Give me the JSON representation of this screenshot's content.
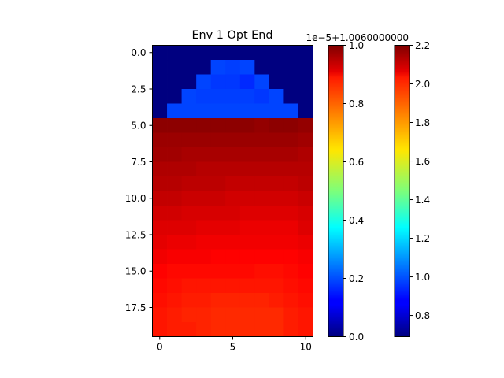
{
  "chart_data": [
    {
      "type": "heatmap",
      "title": "Env 1 Opt End",
      "colormap": "jet",
      "x": [
        0,
        1,
        2,
        3,
        4,
        5,
        6,
        7,
        8,
        9,
        10
      ],
      "y": [
        0,
        1,
        2,
        3,
        4,
        5,
        6,
        7,
        8,
        9,
        10,
        11,
        12,
        13,
        14,
        15,
        16,
        17,
        18,
        19
      ],
      "x_ticks": [
        "0",
        "5",
        "10"
      ],
      "y_ticks": [
        "0.0",
        "2.5",
        "5.0",
        "7.5",
        "10.0",
        "12.5",
        "15.0",
        "17.5"
      ],
      "xlim": [
        -0.5,
        10.5
      ],
      "ylim": [
        19.5,
        -0.5
      ],
      "values": [
        [
          0.07,
          0.07,
          0.07,
          0.07,
          0.12,
          0.22,
          0.08,
          0.07,
          0.07,
          0.06,
          0.07
        ],
        [
          0.06,
          0.06,
          0.06,
          0.07,
          0.98,
          0.97,
          0.98,
          0.07,
          0.06,
          0.05,
          0.06
        ],
        [
          0.06,
          0.06,
          0.07,
          0.98,
          0.96,
          0.96,
          0.94,
          0.98,
          0.06,
          0.06,
          0.06
        ],
        [
          0.06,
          0.12,
          0.98,
          0.97,
          0.97,
          0.97,
          0.97,
          0.96,
          0.98,
          0.06,
          0.06
        ],
        [
          0.14,
          0.98,
          0.98,
          0.98,
          0.98,
          0.98,
          0.98,
          0.98,
          0.98,
          0.98,
          0.08
        ],
        [
          2.18,
          2.18,
          2.18,
          2.18,
          2.18,
          2.18,
          2.18,
          2.17,
          2.18,
          2.18,
          2.17
        ],
        [
          2.16,
          2.16,
          2.16,
          2.16,
          2.16,
          2.16,
          2.16,
          2.16,
          2.16,
          2.16,
          2.15
        ],
        [
          2.15,
          2.15,
          2.14,
          2.14,
          2.14,
          2.14,
          2.14,
          2.14,
          2.14,
          2.14,
          2.13
        ],
        [
          2.13,
          2.13,
          2.13,
          2.12,
          2.12,
          2.12,
          2.12,
          2.12,
          2.12,
          2.12,
          2.12
        ],
        [
          2.12,
          2.12,
          2.11,
          2.11,
          2.11,
          2.1,
          2.1,
          2.1,
          2.1,
          2.1,
          2.11
        ],
        [
          2.1,
          2.1,
          2.09,
          2.09,
          2.09,
          2.08,
          2.08,
          2.08,
          2.08,
          2.08,
          2.09
        ],
        [
          2.08,
          2.08,
          2.07,
          2.07,
          2.07,
          2.07,
          2.06,
          2.06,
          2.06,
          2.06,
          2.07
        ],
        [
          2.06,
          2.06,
          2.06,
          2.05,
          2.05,
          2.05,
          2.04,
          2.04,
          2.04,
          2.04,
          2.06
        ],
        [
          2.05,
          2.04,
          2.04,
          2.03,
          2.03,
          2.03,
          2.03,
          2.03,
          2.03,
          2.03,
          2.04
        ],
        [
          2.03,
          2.02,
          2.02,
          2.02,
          2.01,
          2.01,
          2.01,
          2.01,
          2.01,
          2.01,
          2.02
        ],
        [
          2.01,
          2.0,
          2.0,
          2.0,
          2.0,
          2.0,
          2.0,
          1.99,
          1.99,
          2.0,
          2.01
        ],
        [
          2.0,
          1.99,
          1.98,
          1.98,
          1.98,
          1.98,
          1.98,
          1.98,
          1.98,
          1.99,
          2.0
        ],
        [
          1.99,
          1.98,
          1.97,
          1.97,
          1.96,
          1.96,
          1.96,
          1.96,
          1.97,
          1.98,
          1.99
        ],
        [
          1.98,
          1.97,
          1.96,
          1.96,
          1.95,
          1.95,
          1.95,
          1.95,
          1.95,
          1.97,
          1.98
        ],
        [
          1.98,
          1.97,
          1.97,
          1.96,
          1.95,
          1.95,
          1.95,
          1.95,
          1.95,
          1.97,
          1.98
        ]
      ]
    },
    {
      "type": "colorbar",
      "colormap": "jet",
      "offset_label": "1e−5+1.0060000000",
      "range": [
        0,
        1
      ],
      "ticks": [
        "0.0",
        "0.2",
        "0.4",
        "0.6",
        "0.8",
        "1.0"
      ]
    },
    {
      "type": "colorbar",
      "colormap": "jet",
      "range": [
        0.69,
        2.2
      ],
      "ticks": [
        "0.8",
        "1.0",
        "1.2",
        "1.4",
        "1.6",
        "1.8",
        "2.0",
        "2.2"
      ]
    }
  ]
}
